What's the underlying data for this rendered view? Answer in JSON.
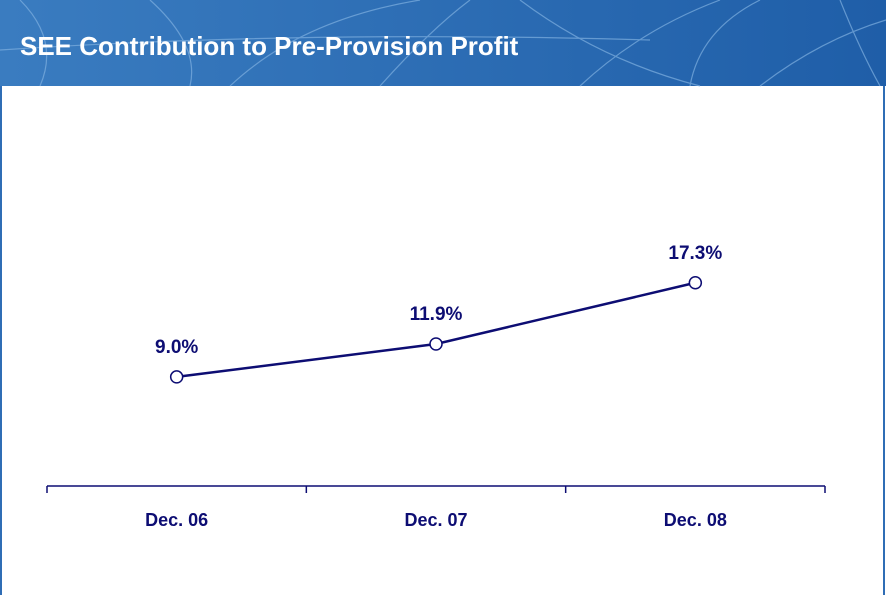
{
  "chart_data": {
    "type": "line",
    "title": "SEE Contribution to Pre-Provision Profit",
    "categories": [
      "Dec. 06",
      "Dec. 07",
      "Dec. 08"
    ],
    "values": [
      9.0,
      11.9,
      17.3
    ],
    "value_labels": [
      "9.0%",
      "11.9%",
      "17.3%"
    ],
    "color": "#0d0d73",
    "ylim": [
      0,
      35
    ]
  }
}
